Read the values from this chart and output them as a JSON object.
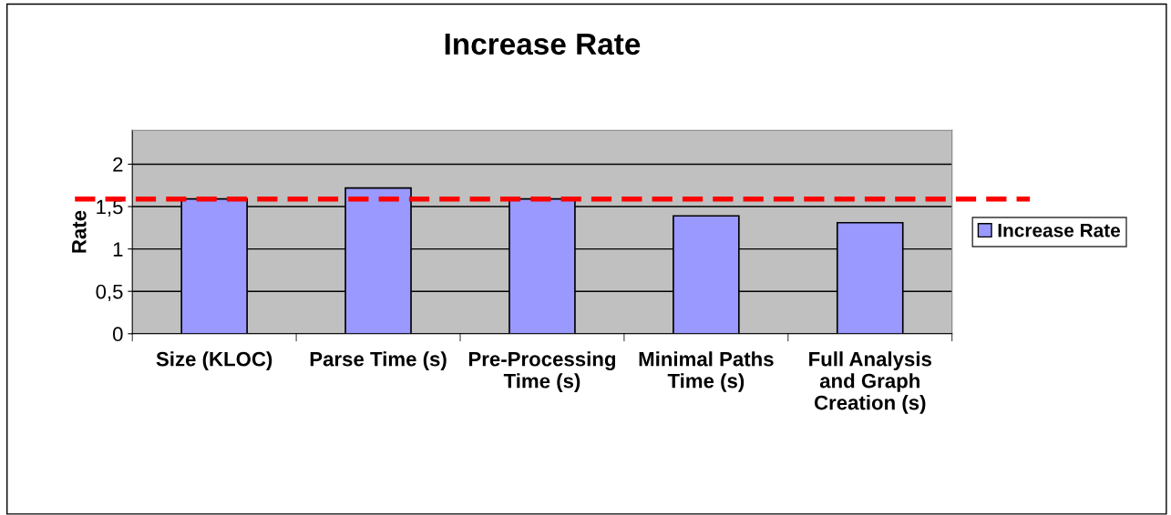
{
  "chart_data": {
    "type": "bar",
    "title": "Increase Rate",
    "ylabel": "Rate",
    "categories": [
      "Size (KLOC)",
      "Parse Time (s)",
      "Pre-Processing Time (s)",
      "Minimal Paths Time (s)",
      "Full Analysis and Graph Creation (s)"
    ],
    "series": [
      {
        "name": "Increase Rate",
        "color": "#9999ff",
        "values": [
          1.59,
          1.72,
          1.59,
          1.39,
          1.31
        ]
      }
    ],
    "ylim": [
      0,
      2.4
    ],
    "yticks": [
      0,
      {
        "value": 0.5,
        "label": "0,5"
      },
      1,
      {
        "value": 1.5,
        "label": "1,5"
      },
      2
    ],
    "ref_lines": [
      {
        "axis": "y",
        "value": 1.59,
        "label": null,
        "color": "#ff0000",
        "line_style": "dashed"
      }
    ],
    "grid": "y",
    "legend": "right"
  }
}
